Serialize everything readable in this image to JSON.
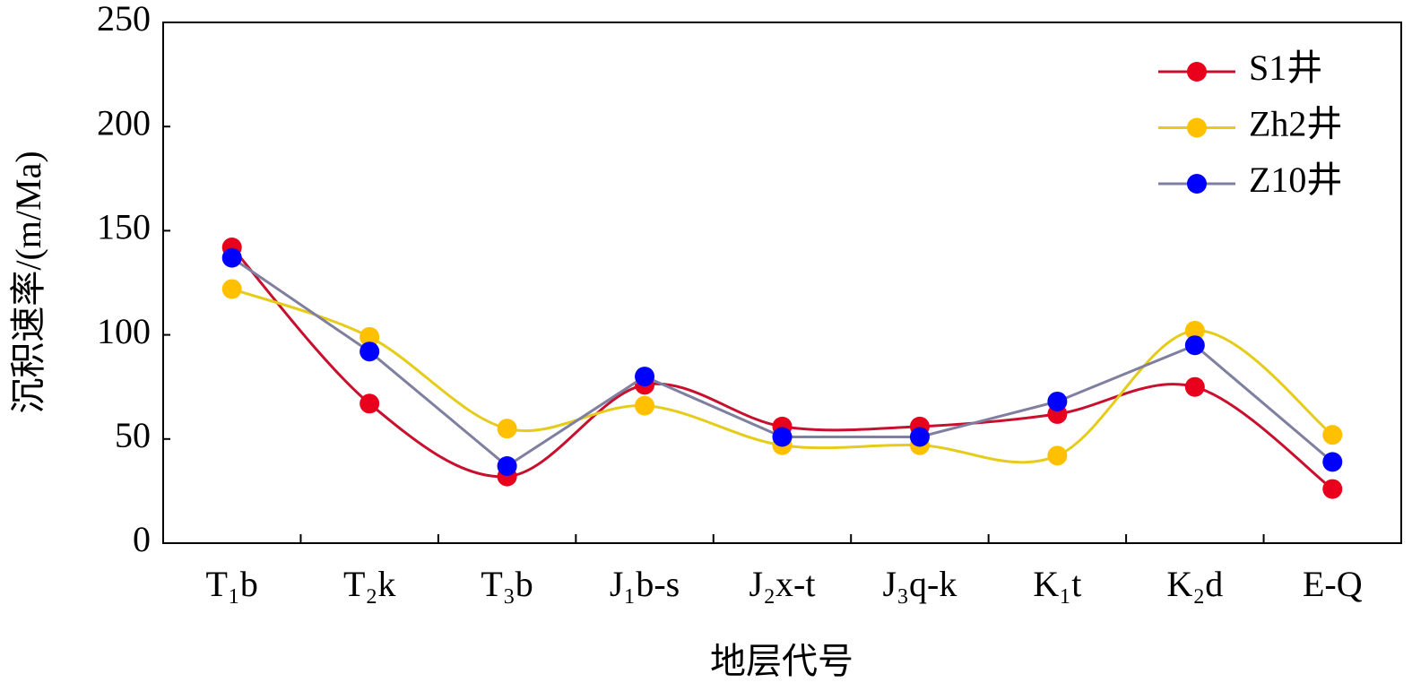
{
  "chart_data": {
    "type": "line",
    "x_label": "地层代号",
    "y_label": "沉积速率/(m/Ma)",
    "categories": [
      "T₁b",
      "T₂k",
      "T₃b",
      "J₁b-s",
      "J₂x-t",
      "J₃q-k",
      "K₁t",
      "K₂d",
      "E-Q"
    ],
    "series": [
      {
        "name": "S1井",
        "color": "#e8001c",
        "line_color": "#c8102e",
        "smooth": true,
        "values": [
          142,
          67,
          32,
          76,
          56,
          56,
          62,
          75,
          26
        ]
      },
      {
        "name": "Zh2井",
        "color": "#ffc000",
        "line_color": "#e6cc1a",
        "smooth": true,
        "values": [
          122,
          99,
          55,
          66,
          47,
          47,
          42,
          102,
          52
        ]
      },
      {
        "name": "Z10井",
        "color": "#0000ff",
        "line_color": "#7f7f9f",
        "smooth": false,
        "values": [
          137,
          92,
          37,
          80,
          51,
          51,
          68,
          95,
          39
        ]
      }
    ],
    "ylim": [
      0,
      250
    ],
    "yticks": [
      0,
      50,
      100,
      150,
      200,
      250
    ],
    "grid": false,
    "legend": "upper right"
  }
}
